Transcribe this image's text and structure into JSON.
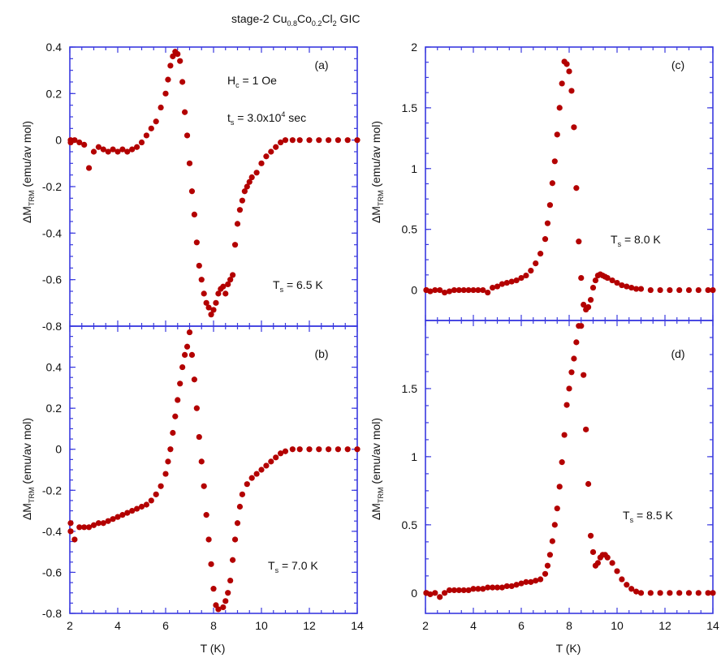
{
  "figure": {
    "title_main": "stage-2 Cu",
    "title_sub1": "0.8",
    "title_mid": "Co",
    "title_sub2": "0.2",
    "title_mid2": "Cl",
    "title_sub3": "2",
    "title_end": " GIC",
    "ylabel_main": "ΔM",
    "ylabel_sub": "TRM",
    "ylabel_unit": " (emu/av mol)",
    "xlabel": "T (K)",
    "field_label": "H",
    "field_sub": "c",
    "field_val": " = 1 Oe",
    "time_label": "t",
    "time_sub": "s",
    "time_val": " = 3.0x10",
    "time_exp": "4",
    "time_unit": " sec"
  },
  "colors": {
    "axis": "#3a3adf",
    "marker": "#b30000"
  },
  "chart_data": [
    {
      "panel": "(a)",
      "type": "scatter",
      "ts_label": "T",
      "ts_sub": "s",
      "ts_val": " = 6.5 K",
      "xlim": [
        2,
        14
      ],
      "ylim": [
        -0.8,
        0.4
      ],
      "yticks": [
        "-0.8",
        "-0.6",
        "-0.4",
        "-0.2",
        "0",
        "0.2",
        "0.4"
      ],
      "x": [
        1.8,
        2.0,
        2.2,
        2.4,
        2.6,
        2.8,
        3.0,
        3.2,
        3.4,
        3.6,
        3.8,
        4.0,
        4.2,
        4.4,
        4.6,
        4.8,
        5.0,
        5.2,
        5.4,
        5.6,
        5.8,
        6.0,
        6.1,
        6.2,
        6.3,
        6.4,
        6.5,
        6.6,
        6.7,
        6.8,
        6.9,
        7.0,
        7.1,
        7.2,
        7.3,
        7.4,
        7.5,
        7.6,
        7.7,
        7.8,
        7.9,
        8.0,
        8.1,
        8.2,
        8.3,
        8.4,
        8.5,
        8.6,
        8.7,
        8.8,
        8.9,
        9.0,
        9.1,
        9.2,
        9.3,
        9.4,
        9.5,
        9.6,
        9.8,
        10.0,
        10.2,
        10.4,
        10.6,
        10.8,
        11.0,
        11.3,
        11.6,
        12.0,
        12.4,
        12.8,
        13.2,
        13.6,
        14.0
      ],
      "y": [
        0.0,
        -0.01,
        0.0,
        -0.01,
        -0.02,
        -0.12,
        -0.05,
        -0.03,
        -0.04,
        -0.05,
        -0.04,
        -0.05,
        -0.04,
        -0.05,
        -0.04,
        -0.03,
        -0.01,
        0.02,
        0.05,
        0.08,
        0.14,
        0.2,
        0.26,
        0.32,
        0.36,
        0.38,
        0.37,
        0.34,
        0.25,
        0.12,
        0.02,
        -0.1,
        -0.22,
        -0.32,
        -0.44,
        -0.54,
        -0.6,
        -0.66,
        -0.7,
        -0.72,
        -0.75,
        -0.73,
        -0.7,
        -0.66,
        -0.64,
        -0.63,
        -0.66,
        -0.62,
        -0.6,
        -0.58,
        -0.45,
        -0.36,
        -0.3,
        -0.26,
        -0.22,
        -0.2,
        -0.18,
        -0.16,
        -0.14,
        -0.1,
        -0.07,
        -0.05,
        -0.03,
        -0.01,
        0.0,
        0.0,
        0.0,
        0.0,
        0.0,
        0.0,
        0.0,
        0.0,
        0.0
      ]
    },
    {
      "panel": "(b)",
      "type": "scatter",
      "ts_label": "T",
      "ts_sub": "s",
      "ts_val": " = 7.0 K",
      "xlim": [
        2,
        14
      ],
      "ylim": [
        -0.8,
        0.6
      ],
      "yticks": [
        "-0.8",
        "-0.6",
        "-0.4",
        "-0.2",
        "0",
        "0.2",
        "0.4"
      ],
      "xticks": [
        "2",
        "4",
        "6",
        "8",
        "10",
        "12",
        "14"
      ],
      "x": [
        1.8,
        2.0,
        2.2,
        2.4,
        2.6,
        2.8,
        3.0,
        3.2,
        3.4,
        3.6,
        3.8,
        4.0,
        4.2,
        4.4,
        4.6,
        4.8,
        5.0,
        5.2,
        5.4,
        5.6,
        5.8,
        6.0,
        6.1,
        6.2,
        6.3,
        6.4,
        6.5,
        6.6,
        6.7,
        6.8,
        6.9,
        7.0,
        7.1,
        7.2,
        7.3,
        7.4,
        7.5,
        7.6,
        7.7,
        7.8,
        7.9,
        8.0,
        8.1,
        8.2,
        8.3,
        8.4,
        8.5,
        8.6,
        8.7,
        8.8,
        8.9,
        9.0,
        9.1,
        9.2,
        9.4,
        9.6,
        9.8,
        10.0,
        10.2,
        10.4,
        10.6,
        10.8,
        11.0,
        11.3,
        11.6,
        12.0,
        12.4,
        12.8,
        13.2,
        13.6,
        14.0
      ],
      "y": [
        -0.36,
        -0.4,
        -0.44,
        -0.38,
        -0.38,
        -0.38,
        -0.37,
        -0.36,
        -0.36,
        -0.35,
        -0.34,
        -0.33,
        -0.32,
        -0.31,
        -0.3,
        -0.29,
        -0.28,
        -0.27,
        -0.25,
        -0.22,
        -0.18,
        -0.12,
        -0.06,
        0.0,
        0.08,
        0.16,
        0.24,
        0.32,
        0.4,
        0.46,
        0.5,
        0.57,
        0.46,
        0.34,
        0.2,
        0.06,
        -0.06,
        -0.18,
        -0.32,
        -0.44,
        -0.56,
        -0.68,
        -0.76,
        -0.78,
        -0.8,
        -0.77,
        -0.74,
        -0.7,
        -0.64,
        -0.54,
        -0.44,
        -0.36,
        -0.28,
        -0.22,
        -0.17,
        -0.14,
        -0.12,
        -0.1,
        -0.08,
        -0.06,
        -0.04,
        -0.02,
        -0.01,
        0.0,
        0.0,
        0.0,
        0.0,
        0.0,
        0.0,
        0.0,
        0.0
      ]
    },
    {
      "panel": "(c)",
      "type": "scatter",
      "ts_label": "T",
      "ts_sub": "s",
      "ts_val": " = 8.0 K",
      "xlim": [
        2,
        14
      ],
      "ylim": [
        -0.25,
        2.0
      ],
      "yticks": [
        "0",
        "0.5",
        "1",
        "1.5",
        "2"
      ],
      "x": [
        1.8,
        2.0,
        2.2,
        2.4,
        2.6,
        2.8,
        3.0,
        3.2,
        3.4,
        3.6,
        3.8,
        4.0,
        4.2,
        4.4,
        4.6,
        4.8,
        5.0,
        5.2,
        5.4,
        5.6,
        5.8,
        6.0,
        6.2,
        6.4,
        6.6,
        6.8,
        7.0,
        7.1,
        7.2,
        7.3,
        7.4,
        7.5,
        7.6,
        7.7,
        7.8,
        7.9,
        8.0,
        8.1,
        8.2,
        8.3,
        8.4,
        8.5,
        8.6,
        8.7,
        8.8,
        8.9,
        9.0,
        9.1,
        9.2,
        9.3,
        9.4,
        9.5,
        9.6,
        9.8,
        10.0,
        10.2,
        10.4,
        10.6,
        10.8,
        11.0,
        11.4,
        11.8,
        12.2,
        12.6,
        13.0,
        13.4,
        13.8,
        14.0
      ],
      "y": [
        0.0,
        0.0,
        -0.01,
        0.0,
        0.0,
        -0.02,
        -0.01,
        0.0,
        0.0,
        0.0,
        0.0,
        0.0,
        0.0,
        0.0,
        -0.02,
        0.02,
        0.03,
        0.05,
        0.06,
        0.07,
        0.08,
        0.1,
        0.12,
        0.16,
        0.22,
        0.3,
        0.42,
        0.55,
        0.7,
        0.88,
        1.06,
        1.28,
        1.5,
        1.7,
        1.88,
        1.86,
        1.8,
        1.64,
        1.34,
        0.84,
        0.4,
        0.1,
        -0.12,
        -0.16,
        -0.14,
        -0.08,
        0.02,
        0.08,
        0.12,
        0.13,
        0.12,
        0.11,
        0.1,
        0.08,
        0.06,
        0.04,
        0.03,
        0.02,
        0.01,
        0.01,
        0.0,
        0.0,
        0.0,
        0.0,
        0.0,
        0.0,
        0.0,
        0.0
      ]
    },
    {
      "panel": "(d)",
      "type": "scatter",
      "ts_label": "T",
      "ts_sub": "s",
      "ts_val": " = 8.5 K",
      "xlim": [
        2,
        14
      ],
      "ylim": [
        -0.15,
        2.0
      ],
      "yticks": [
        "0",
        "0.5",
        "1",
        "1.5"
      ],
      "xticks": [
        "2",
        "4",
        "6",
        "8",
        "10",
        "12",
        "14"
      ],
      "x": [
        1.8,
        2.0,
        2.2,
        2.4,
        2.6,
        2.8,
        3.0,
        3.2,
        3.4,
        3.6,
        3.8,
        4.0,
        4.2,
        4.4,
        4.6,
        4.8,
        5.0,
        5.2,
        5.4,
        5.6,
        5.8,
        6.0,
        6.2,
        6.4,
        6.6,
        6.8,
        7.0,
        7.1,
        7.2,
        7.3,
        7.4,
        7.5,
        7.6,
        7.7,
        7.8,
        7.9,
        8.0,
        8.1,
        8.2,
        8.3,
        8.4,
        8.5,
        8.6,
        8.7,
        8.8,
        8.9,
        9.0,
        9.1,
        9.2,
        9.3,
        9.4,
        9.5,
        9.6,
        9.8,
        10.0,
        10.2,
        10.4,
        10.6,
        10.8,
        11.0,
        11.4,
        11.8,
        12.2,
        12.6,
        13.0,
        13.4,
        13.8,
        14.0
      ],
      "y": [
        0.0,
        0.0,
        -0.01,
        0.0,
        -0.03,
        0.0,
        0.02,
        0.02,
        0.02,
        0.02,
        0.02,
        0.03,
        0.03,
        0.03,
        0.04,
        0.04,
        0.04,
        0.04,
        0.05,
        0.05,
        0.06,
        0.07,
        0.08,
        0.08,
        0.09,
        0.1,
        0.14,
        0.2,
        0.28,
        0.38,
        0.5,
        0.62,
        0.78,
        0.96,
        1.16,
        1.38,
        1.5,
        1.62,
        1.72,
        1.84,
        1.96,
        1.96,
        1.6,
        1.2,
        0.8,
        0.42,
        0.3,
        0.2,
        0.22,
        0.26,
        0.28,
        0.28,
        0.26,
        0.22,
        0.16,
        0.1,
        0.06,
        0.03,
        0.01,
        0.0,
        0.0,
        0.0,
        0.0,
        0.0,
        0.0,
        0.0,
        0.0,
        0.0
      ]
    }
  ]
}
